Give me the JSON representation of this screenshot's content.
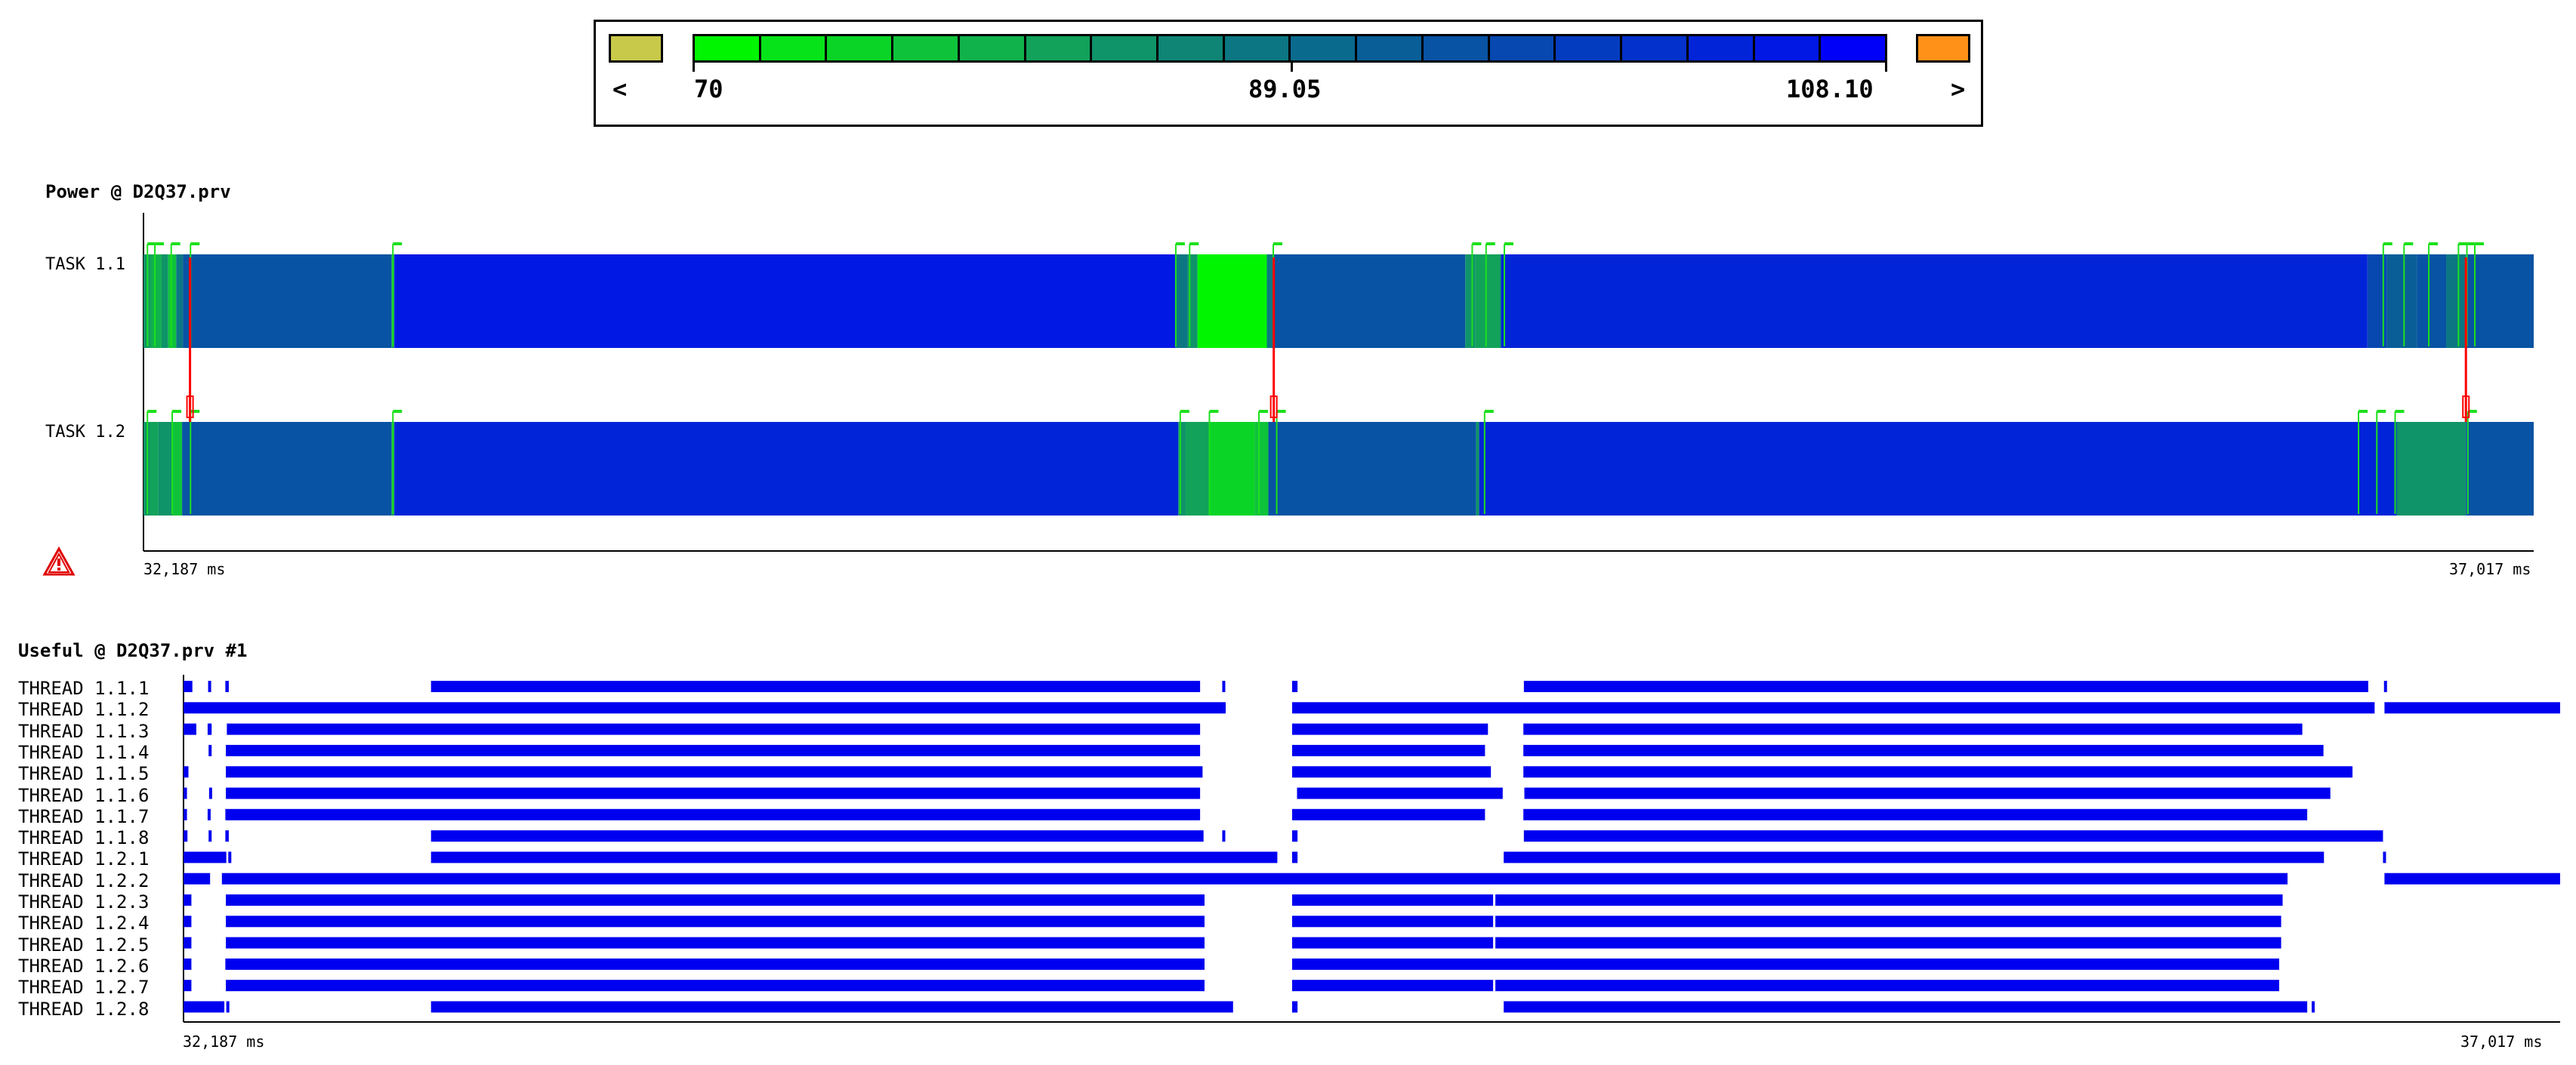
{
  "legend": {
    "min_label": "70",
    "mid_label": "89.05",
    "max_label": "108.10",
    "under_symbol": "<",
    "over_symbol": ">",
    "under_color": "#c8c84a",
    "over_color": "#ff9119",
    "swatches": [
      "#00f500",
      "#06e419",
      "#0ad426",
      "#0ec33a",
      "#10b24b",
      "#12a25a",
      "#0f9368",
      "#0e8575",
      "#0c7782",
      "#0a6a8e",
      "#095e98",
      "#0853a3",
      "#0648b0",
      "#043cbf",
      "#0331cb",
      "#0224d8",
      "#0118e4",
      "#0000f8"
    ]
  },
  "chart_data": [
    {
      "type": "timeline",
      "title": "Power @ D2Q37.prv",
      "x_unit": "ms",
      "xlim": [
        32187,
        37017
      ],
      "x_start_label": "32,187 ms",
      "x_end_label": "37,017 ms",
      "rows": [
        "TASK 1.1",
        "TASK 1.2"
      ],
      "segments": [
        [
          {
            "s": 32187,
            "e": 32197,
            "c": "#0f9368"
          },
          {
            "s": 32197,
            "e": 32203,
            "c": "#12a25a"
          },
          {
            "s": 32203,
            "e": 32223,
            "c": "#10b24b"
          },
          {
            "s": 32223,
            "e": 32237,
            "c": "#0f9368"
          },
          {
            "s": 32237,
            "e": 32253,
            "c": "#0ec33a"
          },
          {
            "s": 32253,
            "e": 32267,
            "c": "#0c7782"
          },
          {
            "s": 32267,
            "e": 32688,
            "c": "#0853a3"
          },
          {
            "s": 32688,
            "e": 32694,
            "c": "#0f9368"
          },
          {
            "s": 32694,
            "e": 34272,
            "c": "#0118e4"
          },
          {
            "s": 34272,
            "e": 34297,
            "c": "#0c7782"
          },
          {
            "s": 34297,
            "e": 34317,
            "c": "#0f9368"
          },
          {
            "s": 34317,
            "e": 34457,
            "c": "#00f500"
          },
          {
            "s": 34457,
            "e": 34470,
            "c": "#0c7782"
          },
          {
            "s": 34470,
            "e": 34858,
            "c": "#0853a3"
          },
          {
            "s": 34858,
            "e": 34878,
            "c": "#0f9368"
          },
          {
            "s": 34878,
            "e": 34930,
            "c": "#12a25a"
          },
          {
            "s": 34930,
            "e": 36681,
            "c": "#0224d8"
          },
          {
            "s": 36681,
            "e": 36720,
            "c": "#0648b0"
          },
          {
            "s": 36720,
            "e": 36781,
            "c": "#095e98"
          },
          {
            "s": 36781,
            "e": 36840,
            "c": "#0853a3"
          },
          {
            "s": 36840,
            "e": 36880,
            "c": "#0c7782"
          },
          {
            "s": 36880,
            "e": 37017,
            "c": "#0853a3"
          }
        ],
        [
          {
            "s": 32187,
            "e": 32200,
            "c": "#0f9368"
          },
          {
            "s": 32200,
            "e": 32217,
            "c": "#12a25a"
          },
          {
            "s": 32217,
            "e": 32245,
            "c": "#0f9368"
          },
          {
            "s": 32245,
            "e": 32265,
            "c": "#0ec33a"
          },
          {
            "s": 32265,
            "e": 32688,
            "c": "#0853a3"
          },
          {
            "s": 32688,
            "e": 32694,
            "c": "#0f9368"
          },
          {
            "s": 32694,
            "e": 34278,
            "c": "#0224d8"
          },
          {
            "s": 34278,
            "e": 34293,
            "c": "#0f9368"
          },
          {
            "s": 34293,
            "e": 34340,
            "c": "#12a25a"
          },
          {
            "s": 34340,
            "e": 34432,
            "c": "#0ad426"
          },
          {
            "s": 34432,
            "e": 34460,
            "c": "#0ec33a"
          },
          {
            "s": 34460,
            "e": 34880,
            "c": "#0853a3"
          },
          {
            "s": 34880,
            "e": 34886,
            "c": "#0f9368"
          },
          {
            "s": 34886,
            "e": 36740,
            "c": "#0224d8"
          },
          {
            "s": 36740,
            "e": 36880,
            "c": "#0f9368"
          },
          {
            "s": 36880,
            "e": 37017,
            "c": "#0853a3"
          }
        ]
      ],
      "events": [
        [
          32195,
          32210,
          32243,
          32282,
          32691,
          34273,
          34301,
          34470,
          34872,
          34900,
          34937,
          36713,
          36755,
          36805,
          36865,
          36882,
          36898
        ],
        [
          32195,
          32245,
          32282,
          32691,
          34282,
          34341,
          34441,
          34477,
          34897,
          36663,
          36700,
          36737,
          36884
        ]
      ],
      "communications": [
        32281,
        34471,
        36880
      ]
    },
    {
      "type": "timeline",
      "title": "Useful @ D2Q37.prv #1",
      "x_unit": "ms",
      "xlim": [
        32187,
        37017
      ],
      "x_start_label": "32,187 ms",
      "x_end_label": "37,017 ms",
      "bar_color": "#0000f0",
      "rows": [
        "THREAD 1.1.1",
        "THREAD 1.1.2",
        "THREAD 1.1.3",
        "THREAD 1.1.4",
        "THREAD 1.1.5",
        "THREAD 1.1.6",
        "THREAD 1.1.7",
        "THREAD 1.1.8",
        "THREAD 1.2.1",
        "THREAD 1.2.2",
        "THREAD 1.2.3",
        "THREAD 1.2.4",
        "THREAD 1.2.5",
        "THREAD 1.2.6",
        "THREAD 1.2.7",
        "THREAD 1.2.8"
      ],
      "segments": [
        [
          [
            32187,
            32205
          ],
          [
            32237,
            32241
          ],
          [
            32272,
            32279
          ],
          [
            32690,
            34253
          ],
          [
            34298,
            34302
          ],
          [
            34440,
            34451
          ],
          [
            34911,
            36627
          ],
          [
            36659,
            36664
          ]
        ],
        [
          [
            32187,
            34305
          ],
          [
            34440,
            36640
          ],
          [
            36660,
            37017
          ]
        ],
        [
          [
            32187,
            32213
          ],
          [
            32238,
            32242
          ],
          [
            32272,
            34253
          ],
          [
            34440,
            34838
          ],
          [
            34910,
            36493
          ]
        ],
        [
          [
            32238,
            32242
          ],
          [
            32272,
            34253
          ],
          [
            34440,
            34832
          ],
          [
            34910,
            36536
          ]
        ],
        [
          [
            32187,
            32197
          ],
          [
            32272,
            34258
          ],
          [
            34440,
            34844
          ],
          [
            34910,
            36595
          ]
        ],
        [
          [
            32187,
            32194
          ],
          [
            32239,
            32243
          ],
          [
            32272,
            34253
          ],
          [
            34450,
            34868
          ],
          [
            34912,
            36550
          ]
        ],
        [
          [
            32187,
            32194
          ],
          [
            32272,
            34253
          ],
          [
            34440,
            34832
          ],
          [
            34910,
            36503
          ]
        ],
        [
          [
            32187,
            32195
          ],
          [
            32238,
            32242
          ],
          [
            32272,
            32279
          ],
          [
            32690,
            34260
          ],
          [
            34298,
            34302
          ],
          [
            34440,
            34451
          ],
          [
            34911,
            36657
          ]
        ],
        [
          [
            32187,
            32274
          ],
          [
            32278,
            32282
          ],
          [
            32690,
            34410
          ],
          [
            34440,
            34451
          ],
          [
            34870,
            36537
          ],
          [
            36657,
            36662
          ]
        ],
        [
          [
            32187,
            32241
          ],
          [
            32265,
            36463
          ],
          [
            36660,
            37017
          ]
        ],
        [
          [
            32187,
            32203
          ],
          [
            32272,
            34262
          ],
          [
            34440,
            36453
          ]
        ],
        [
          [
            32187,
            32203
          ],
          [
            32272,
            34262
          ],
          [
            34440,
            36450
          ]
        ],
        [
          [
            32187,
            32203
          ],
          [
            32272,
            34262
          ],
          [
            34440,
            36450
          ]
        ],
        [
          [
            32187,
            32203
          ],
          [
            32272,
            34262
          ],
          [
            34440,
            36446
          ]
        ],
        [
          [
            32187,
            32203
          ],
          [
            32272,
            34262
          ],
          [
            34440,
            36446
          ]
        ],
        [
          [
            32187,
            32270
          ],
          [
            32274,
            32278
          ],
          [
            32690,
            34320
          ],
          [
            34440,
            34451
          ],
          [
            34870,
            36503
          ]
        ]
      ],
      "marks": [
        [],
        [],
        [
          [
            32272,
            32272
          ]
        ],
        [
          [
            32270,
            32270
          ]
        ],
        [
          [
            32270,
            32270
          ]
        ],
        [
          [
            32270,
            32270
          ]
        ],
        [],
        [],
        [],
        [],
        [
          [
            32270,
            32270
          ],
          [
            34850,
            34850
          ]
        ],
        [
          [
            32270,
            32270
          ],
          [
            34850,
            34850
          ]
        ],
        [
          [
            32270,
            32270
          ],
          [
            34850,
            34850
          ]
        ],
        [],
        [
          [
            32270,
            32270
          ],
          [
            34850,
            34850
          ]
        ],
        []
      ],
      "ticks": [
        [],
        [],
        [
          32236
        ],
        [],
        [],
        [],
        [
          32236
        ],
        [],
        [],
        [],
        [],
        [],
        [],
        [],
        [],
        [
          36512
        ]
      ]
    }
  ]
}
